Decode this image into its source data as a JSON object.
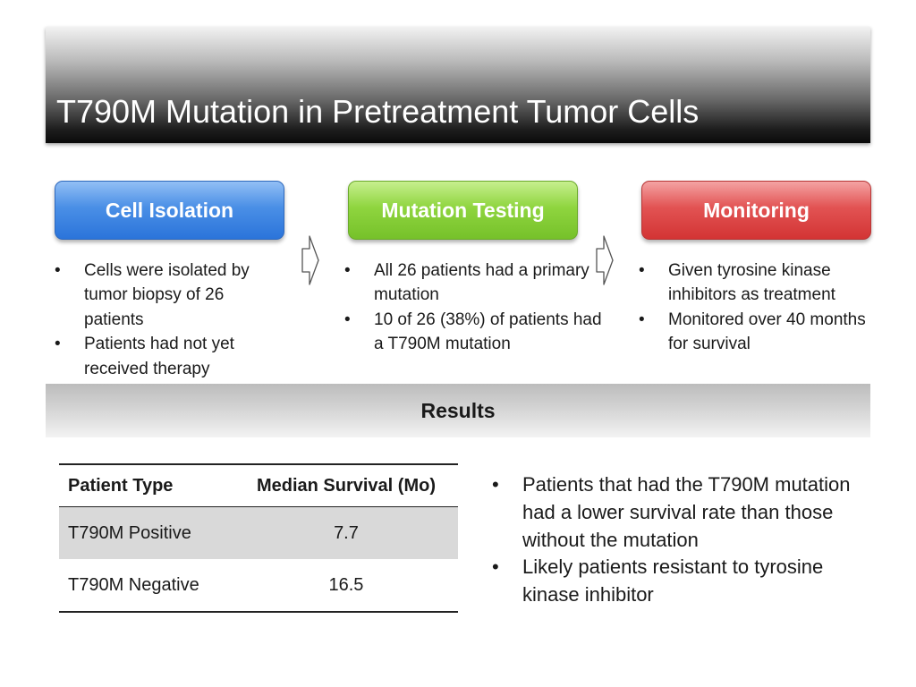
{
  "title": "T790M Mutation in Pretreatment Tumor Cells",
  "steps": [
    {
      "label": "Cell Isolation",
      "color": "#3a7fdd",
      "bullets": [
        "Cells were isolated by tumor biopsy of 26 patients",
        "Patients had not yet received therapy"
      ]
    },
    {
      "label": "Mutation Testing",
      "color": "#86cc38",
      "bullets": [
        "All 26 patients had a primary mutation",
        "10 of 26 (38%) of patients had a T790M mutation"
      ]
    },
    {
      "label": "Monitoring",
      "color": "#dc4444",
      "bullets": [
        "Given tyrosine kinase inhibitors as treatment",
        "Monitored over 40 months for survival"
      ]
    }
  ],
  "bullet_char": "•",
  "results": {
    "heading": "Results",
    "table": {
      "headers": [
        "Patient Type",
        "Median Survival (Mo)"
      ],
      "rows": [
        [
          "T790M Positive",
          "7.7"
        ],
        [
          "T790M Negative",
          "16.5"
        ]
      ]
    },
    "findings": [
      "Patients that had the T790M mutation had a lower survival rate than those without the mutation",
      "Likely patients resistant to tyrosine kinase inhibitor"
    ]
  }
}
